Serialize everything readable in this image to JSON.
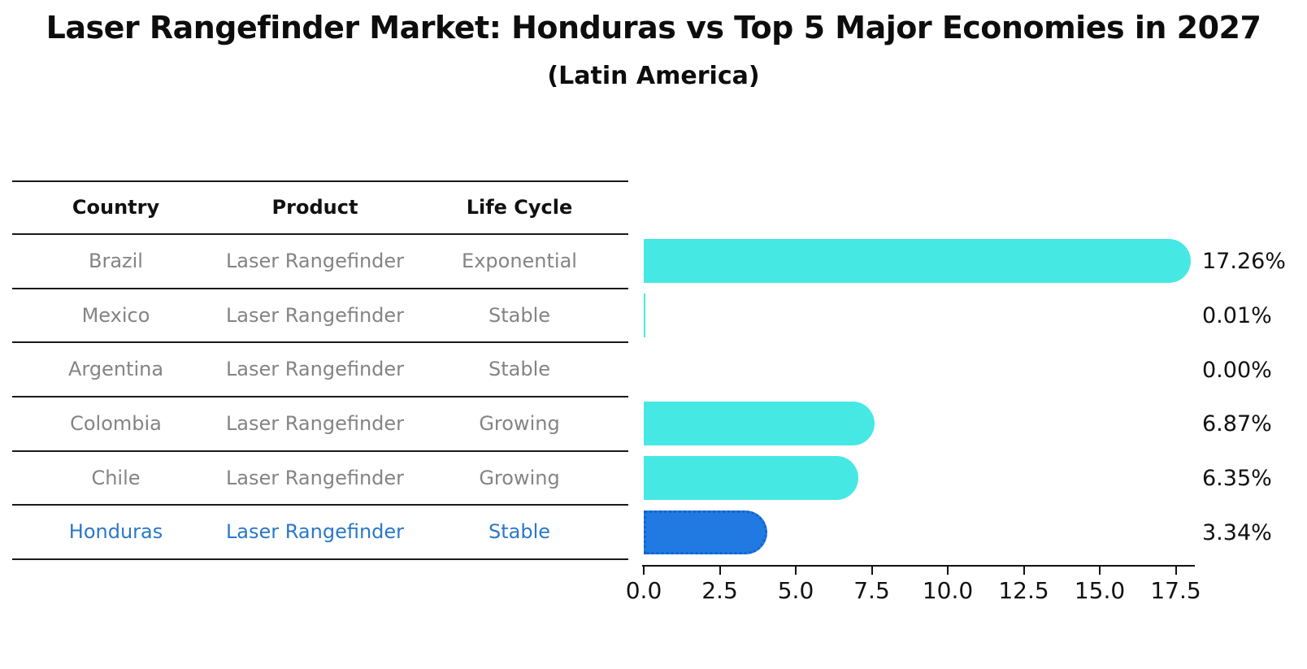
{
  "title": "Laser Rangefinder Market: Honduras vs Top 5 Major Economies in 2027",
  "subtitle": "(Latin America)",
  "table": {
    "headers": [
      "Country",
      "Product",
      "Life Cycle"
    ],
    "rows": [
      {
        "country": "Brazil",
        "product": "Laser Rangefinder",
        "life_cycle": "Exponential",
        "highlighted": false
      },
      {
        "country": "Mexico",
        "product": "Laser Rangefinder",
        "life_cycle": "Stable",
        "highlighted": false
      },
      {
        "country": "Argentina",
        "product": "Laser Rangefinder",
        "life_cycle": "Stable",
        "highlighted": false
      },
      {
        "country": "Colombia",
        "product": "Laser Rangefinder",
        "life_cycle": "Growing",
        "highlighted": false
      },
      {
        "country": "Chile",
        "product": "Laser Rangefinder",
        "life_cycle": "Growing",
        "highlighted": false
      },
      {
        "country": "Honduras",
        "product": "Laser Rangefinder",
        "life_cycle": "Stable",
        "highlighted": true
      }
    ]
  },
  "chart_data": {
    "type": "bar",
    "orientation": "horizontal",
    "title": "Laser Rangefinder Market: Honduras vs Top 5 Major Economies in 2027",
    "subtitle": "(Latin America)",
    "categories": [
      "Brazil",
      "Mexico",
      "Argentina",
      "Colombia",
      "Chile",
      "Honduras"
    ],
    "values": [
      17.26,
      0.01,
      0.0,
      6.87,
      6.35,
      3.34
    ],
    "value_labels": [
      "17.26%",
      "0.01%",
      "0.00%",
      "6.87%",
      "6.35%",
      "3.34%"
    ],
    "x_tick_labels": [
      "0.0",
      "2.5",
      "5.0",
      "7.5",
      "10.0",
      "12.5",
      "15.0",
      "17.5"
    ],
    "xlim": [
      0,
      18.2
    ],
    "grid": false,
    "legend": false,
    "highlight_index": 5,
    "bar_color": "#46E8E3",
    "highlight_bar_color": "#207AE2"
  },
  "colors": {
    "bar_cyan": "#46E8E3",
    "bar_blue": "#207AE2",
    "highlight_text": "#2A78C8",
    "table_text": "#848484",
    "heading_text": "#111111",
    "line_color": "#1a1a1a"
  }
}
